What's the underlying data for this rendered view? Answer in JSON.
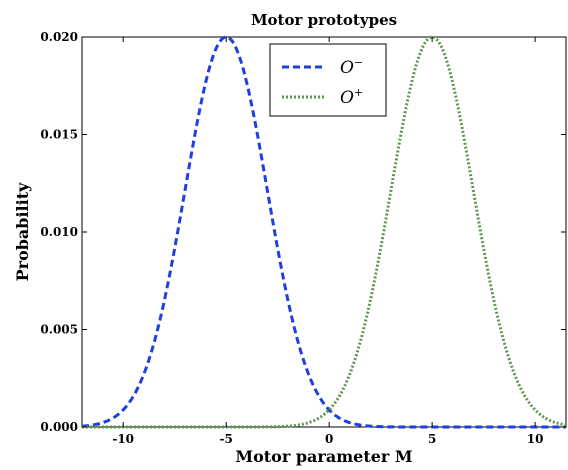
{
  "chart_data": {
    "type": "line",
    "title": "Motor prototypes",
    "xlabel": "Motor parameter M",
    "ylabel": "Probability",
    "xlim": [
      -12,
      11.5
    ],
    "ylim": [
      0,
      0.02
    ],
    "xticks": [
      -10,
      -5,
      0,
      5,
      10
    ],
    "xtick_labels": [
      "-10",
      "-5",
      "0",
      "5",
      "10"
    ],
    "yticks": [
      0,
      0.005,
      0.01,
      0.015,
      0.02
    ],
    "ytick_labels": [
      "0.000",
      "0.005",
      "0.010",
      "0.015",
      "0.020"
    ],
    "grid": false,
    "legend_position": "top-center",
    "series": [
      {
        "name": "O",
        "superscript": "−",
        "color": "#1f3fe0",
        "style": "dashed",
        "distribution": "gaussian",
        "mean": -5,
        "std": 2,
        "peak": 0.02
      },
      {
        "name": "O",
        "superscript": "+",
        "color": "#5a9a4a",
        "style": "dotted",
        "distribution": "gaussian",
        "mean": 5,
        "std": 2,
        "peak": 0.02
      }
    ]
  }
}
